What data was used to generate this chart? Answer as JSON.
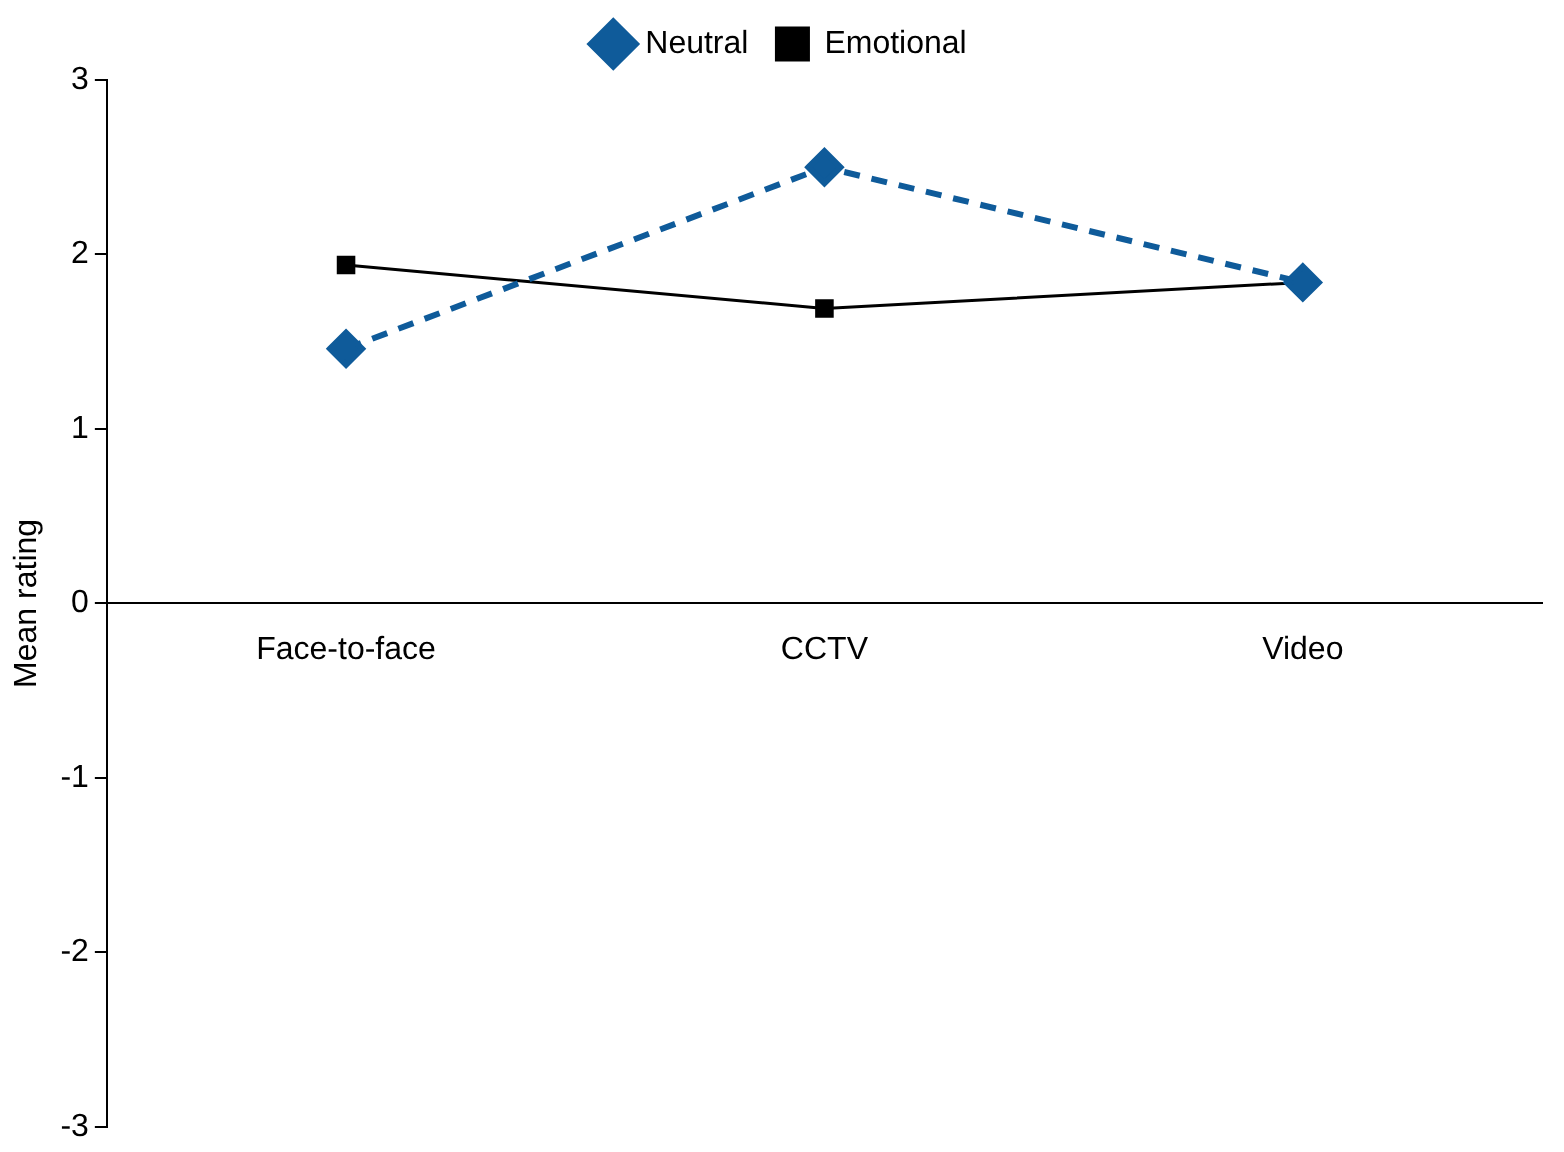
{
  "chart_data": {
    "type": "line",
    "ylabel": "Mean rating",
    "categories": [
      "Face-to-face",
      "CCTV",
      "Video"
    ],
    "series": [
      {
        "name": "Neutral",
        "color": "#0f5b9a",
        "values": [
          1.46,
          2.5,
          1.84
        ],
        "line_style": "dashed",
        "marker": "diamond"
      },
      {
        "name": "Emotional",
        "color": "#000000",
        "values": [
          1.94,
          1.69,
          1.84
        ],
        "line_style": "solid",
        "marker": "square"
      }
    ],
    "ylim": [
      -3,
      3
    ],
    "yticks": [
      -3,
      -2,
      -1,
      0,
      1,
      2,
      3
    ],
    "grid": false,
    "legend": "top"
  }
}
